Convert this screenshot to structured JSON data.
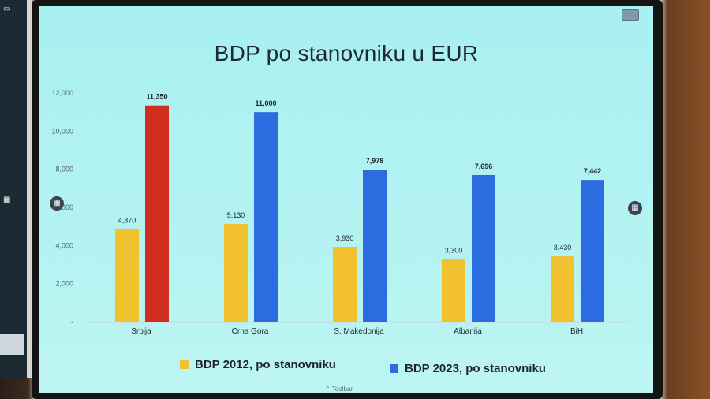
{
  "title": "BDP po stanovniku u EUR",
  "toolbar_label": "Toolbar",
  "colors": {
    "bdp_2012": "#f2c12e",
    "bdp_2023": "#2b6de0",
    "srbija_2023": "#d12d1e"
  },
  "legend": [
    {
      "label": "BDP 2012, po stanovniku",
      "color": "#f2c12e"
    },
    {
      "label": "BDP 2023, po stanovniku",
      "color": "#2b6de0"
    }
  ],
  "icons": [
    "screen-icon",
    "grid-icon"
  ],
  "chart_data": {
    "type": "bar",
    "title": "BDP po stanovniku u EUR",
    "categories": [
      "Srbija",
      "Crna Gora",
      "S. Makedonija",
      "Albanija",
      "BiH"
    ],
    "series": [
      {
        "name": "BDP 2012, po stanovniku",
        "values": [
          4870,
          5130,
          3930,
          3300,
          3430
        ],
        "labels": [
          "4,870",
          "5,130",
          "3,930",
          "3,300",
          "3,430"
        ]
      },
      {
        "name": "BDP 2023, po stanovniku",
        "values": [
          11350,
          11000,
          7978,
          7696,
          7442
        ],
        "labels": [
          "11,350",
          "11,000",
          "7,978",
          "7,696",
          "7,442"
        ]
      }
    ],
    "y_ticks": [
      "-",
      "2,000",
      "4,000",
      "6,000",
      "8,000",
      "10,000",
      "12,000"
    ],
    "ylim": [
      0,
      12000
    ],
    "legend_position": "bottom",
    "grid": false
  }
}
